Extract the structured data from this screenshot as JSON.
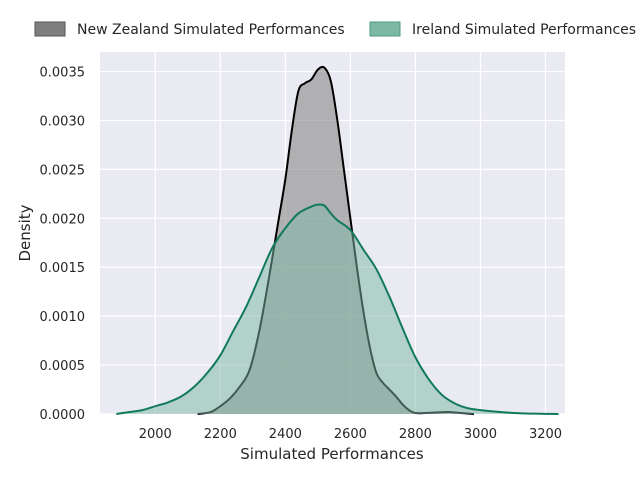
{
  "chart_data": {
    "type": "area",
    "xlabel": "Simulated Performances",
    "ylabel": "Density",
    "xlim": [
      1830,
      3260
    ],
    "ylim": [
      0,
      0.0037
    ],
    "x_ticks": [
      2000,
      2200,
      2400,
      2600,
      2800,
      3000,
      3200
    ],
    "x_tick_labels": [
      "2000",
      "2200",
      "2400",
      "2600",
      "2800",
      "3000",
      "3200"
    ],
    "y_ticks": [
      0,
      0.0005,
      0.001,
      0.0015,
      0.002,
      0.0025,
      0.003,
      0.0035
    ],
    "y_tick_labels": [
      "0.0000",
      "0.0005",
      "0.0010",
      "0.0015",
      "0.0020",
      "0.0025",
      "0.0030",
      "0.0035"
    ],
    "grid": true,
    "legend_position": "top",
    "series": [
      {
        "name": "New Zealand Simulated Performances",
        "line_color": "#000000",
        "fill_color": "#7f7f7f",
        "x": [
          2130,
          2170,
          2200,
          2230,
          2260,
          2290,
          2320,
          2350,
          2380,
          2400,
          2420,
          2440,
          2460,
          2480,
          2500,
          2520,
          2540,
          2560,
          2580,
          2600,
          2620,
          2640,
          2660,
          2680,
          2700,
          2720,
          2740,
          2760,
          2780,
          2800,
          2830,
          2860,
          2900,
          2940,
          2980
        ],
        "y": [
          0.0,
          2e-05,
          8e-05,
          0.00016,
          0.00028,
          0.00045,
          0.00085,
          0.0014,
          0.002,
          0.0024,
          0.0029,
          0.0033,
          0.00338,
          0.00342,
          0.00352,
          0.00354,
          0.0034,
          0.003,
          0.0025,
          0.002,
          0.0015,
          0.00105,
          0.00068,
          0.00042,
          0.00032,
          0.00025,
          0.00018,
          0.0001,
          4e-05,
          1e-05,
          1e-05,
          1.5e-05,
          2e-05,
          1e-05,
          0.0
        ]
      },
      {
        "name": "Ireland Simulated Performances",
        "line_color": "#117a5b",
        "fill_color": "#7cb8a3",
        "x": [
          1880,
          1920,
          1960,
          2000,
          2040,
          2080,
          2120,
          2160,
          2200,
          2240,
          2280,
          2320,
          2360,
          2400,
          2440,
          2480,
          2500,
          2520,
          2540,
          2560,
          2600,
          2640,
          2680,
          2720,
          2760,
          2800,
          2840,
          2880,
          2920,
          2960,
          3000,
          3060,
          3120,
          3180,
          3240
        ],
        "y": [
          0.0,
          2e-05,
          4e-05,
          8e-05,
          0.00012,
          0.00018,
          0.00028,
          0.00042,
          0.0006,
          0.00085,
          0.0011,
          0.0014,
          0.0017,
          0.0019,
          0.00205,
          0.00212,
          0.00214,
          0.00213,
          0.00205,
          0.00198,
          0.00188,
          0.00168,
          0.00148,
          0.0012,
          0.00088,
          0.00058,
          0.00036,
          0.0002,
          0.00011,
          6e-05,
          4e-05,
          2e-05,
          8e-06,
          3e-06,
          0.0
        ]
      }
    ]
  }
}
